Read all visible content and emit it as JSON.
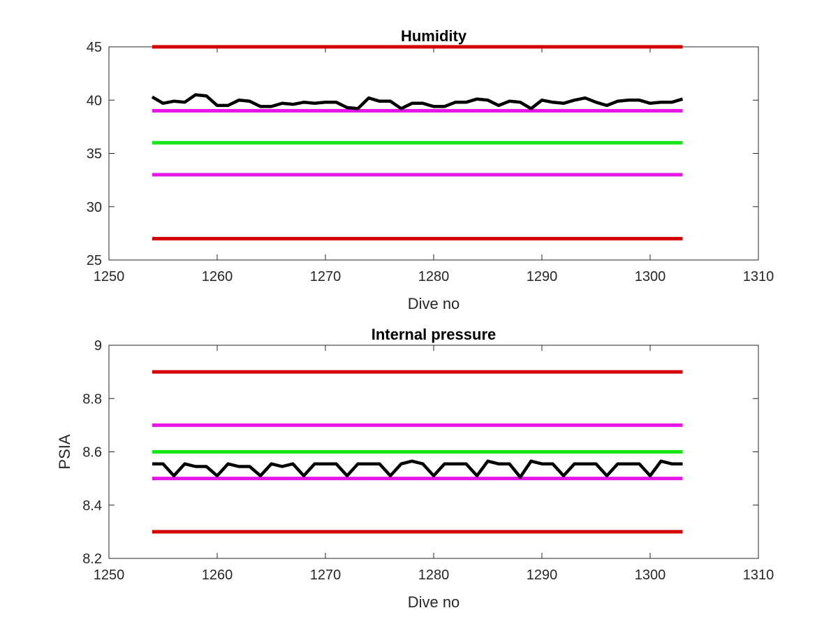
{
  "chart_data": [
    {
      "type": "line",
      "title": "Humidity",
      "xlabel": "Dive no",
      "ylabel": "",
      "xlim": [
        1250,
        1310
      ],
      "ylim": [
        25,
        45
      ],
      "xticks": [
        1250,
        1260,
        1270,
        1280,
        1290,
        1300,
        1310
      ],
      "xtick_labels": [
        "1250",
        "1260",
        "1270",
        "1280",
        "1290",
        "1300",
        "1310"
      ],
      "yticks": [
        25,
        30,
        35,
        40,
        45
      ],
      "ytick_labels": [
        "25",
        "30",
        "35",
        "40",
        "45"
      ],
      "grid": false,
      "reference_lines": [
        {
          "y": 45,
          "x_start": 1254,
          "x_end": 1303,
          "color": "#d40000"
        },
        {
          "y": 39,
          "x_start": 1254,
          "x_end": 1303,
          "color": "#e617e6"
        },
        {
          "y": 36,
          "x_start": 1254,
          "x_end": 1303,
          "color": "#19e619"
        },
        {
          "y": 33,
          "x_start": 1254,
          "x_end": 1303,
          "color": "#e617e6"
        },
        {
          "y": 27,
          "x_start": 1254,
          "x_end": 1303,
          "color": "#d40000"
        }
      ],
      "series": [
        {
          "color": "#000000",
          "x": [
            1254,
            1255,
            1256,
            1257,
            1258,
            1259,
            1260,
            1261,
            1262,
            1263,
            1264,
            1265,
            1266,
            1267,
            1268,
            1269,
            1270,
            1271,
            1272,
            1273,
            1274,
            1275,
            1276,
            1277,
            1278,
            1279,
            1280,
            1281,
            1282,
            1283,
            1284,
            1285,
            1286,
            1287,
            1288,
            1289,
            1290,
            1291,
            1292,
            1293,
            1294,
            1295,
            1296,
            1297,
            1298,
            1299,
            1300,
            1301,
            1302,
            1303
          ],
          "values": [
            40.3,
            39.7,
            39.9,
            39.8,
            40.5,
            40.4,
            39.5,
            39.5,
            40.0,
            39.9,
            39.4,
            39.4,
            39.7,
            39.6,
            39.8,
            39.7,
            39.8,
            39.8,
            39.3,
            39.2,
            40.2,
            39.9,
            39.9,
            39.2,
            39.7,
            39.7,
            39.4,
            39.4,
            39.8,
            39.8,
            40.1,
            40.0,
            39.5,
            39.9,
            39.8,
            39.2,
            40.0,
            39.8,
            39.7,
            40.0,
            40.2,
            39.8,
            39.5,
            39.9,
            40.0,
            40.0,
            39.7,
            39.8,
            39.8,
            40.1
          ]
        }
      ]
    },
    {
      "type": "line",
      "title": "Internal pressure",
      "xlabel": "Dive no",
      "ylabel": "PSIA",
      "xlim": [
        1250,
        1310
      ],
      "ylim": [
        8.2,
        9.0
      ],
      "xticks": [
        1250,
        1260,
        1270,
        1280,
        1290,
        1300,
        1310
      ],
      "xtick_labels": [
        "1250",
        "1260",
        "1270",
        "1280",
        "1290",
        "1300",
        "1310"
      ],
      "yticks": [
        8.2,
        8.4,
        8.6,
        8.8,
        9.0
      ],
      "ytick_labels": [
        "8.2",
        "8.4",
        "8.6",
        "8.8",
        "9"
      ],
      "grid": false,
      "reference_lines": [
        {
          "y": 8.9,
          "x_start": 1254,
          "x_end": 1303,
          "color": "#d40000"
        },
        {
          "y": 8.7,
          "x_start": 1254,
          "x_end": 1303,
          "color": "#e617e6"
        },
        {
          "y": 8.6,
          "x_start": 1254,
          "x_end": 1303,
          "color": "#19e619"
        },
        {
          "y": 8.5,
          "x_start": 1254,
          "x_end": 1303,
          "color": "#e617e6"
        },
        {
          "y": 8.3,
          "x_start": 1254,
          "x_end": 1303,
          "color": "#d40000"
        }
      ],
      "series": [
        {
          "color": "#000000",
          "x": [
            1254,
            1255,
            1256,
            1257,
            1258,
            1259,
            1260,
            1261,
            1262,
            1263,
            1264,
            1265,
            1266,
            1267,
            1268,
            1269,
            1270,
            1271,
            1272,
            1273,
            1274,
            1275,
            1276,
            1277,
            1278,
            1279,
            1280,
            1281,
            1282,
            1283,
            1284,
            1285,
            1286,
            1287,
            1288,
            1289,
            1290,
            1291,
            1292,
            1293,
            1294,
            1295,
            1296,
            1297,
            1298,
            1299,
            1300,
            1301,
            1302,
            1303
          ],
          "values": [
            8.555,
            8.555,
            8.51,
            8.555,
            8.545,
            8.545,
            8.51,
            8.555,
            8.545,
            8.545,
            8.51,
            8.555,
            8.545,
            8.555,
            8.51,
            8.555,
            8.555,
            8.555,
            8.51,
            8.555,
            8.555,
            8.555,
            8.51,
            8.555,
            8.565,
            8.555,
            8.51,
            8.555,
            8.555,
            8.555,
            8.51,
            8.565,
            8.555,
            8.555,
            8.505,
            8.565,
            8.555,
            8.555,
            8.51,
            8.555,
            8.555,
            8.555,
            8.51,
            8.555,
            8.555,
            8.555,
            8.51,
            8.565,
            8.555,
            8.555
          ]
        }
      ]
    }
  ]
}
